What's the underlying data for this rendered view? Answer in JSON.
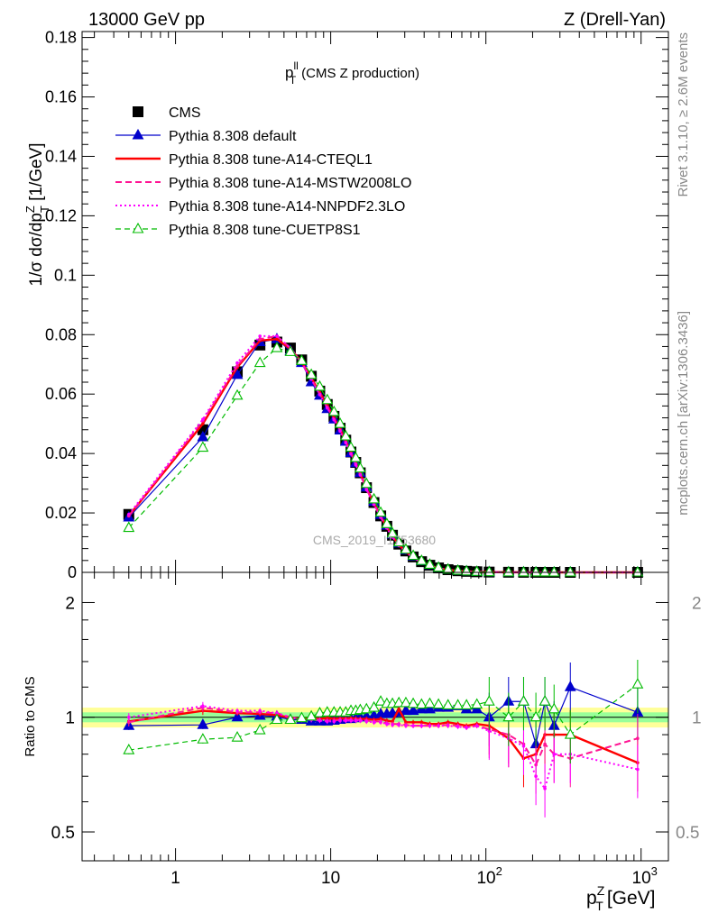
{
  "header": {
    "left": "13000 GeV pp",
    "right": "Z (Drell-Yan)"
  },
  "side_labels": {
    "rivet": "Rivet 3.1.10, ≥ 2.6M events",
    "mcplots": "mcplots.cern.ch [arXiv:1306.3436]"
  },
  "watermark": "CMS_2019_I1753680",
  "colors": {
    "cms": "#000000",
    "default": "#0000cc",
    "cteql1": "#ff0000",
    "mstw": "#ff1493",
    "nnpdf": "#ff00ff",
    "cuetp": "#00bb00",
    "band_yellow": "#ffff99",
    "band_green": "#99ff99"
  },
  "chart_data": [
    {
      "type": "line",
      "panel": "main",
      "title": "p_T^ll (CMS Z production)",
      "title_parts": {
        "main": "p",
        "sup": "ll",
        "sub": "T",
        "rest": "(CMS Z production)"
      },
      "xlabel": "p_T^Z [GeV]",
      "ylabel": "1/σ dσ/dp_T^Z [1/GeV]",
      "xscale": "log",
      "xlim": [
        0.25,
        1500
      ],
      "ylim": [
        0,
        0.182
      ],
      "ytick_labels": [
        "0",
        "0.02",
        "0.04",
        "0.06",
        "0.08",
        "0.1",
        "0.12",
        "0.14",
        "0.16",
        "0.18"
      ],
      "legend_position": "top-left",
      "legend": [
        "CMS",
        "Pythia 8.308 default",
        "Pythia 8.308 tune-A14-CTEQL1",
        "Pythia 8.308 tune-A14-MSTW2008LO",
        "Pythia 8.308 tune-A14-NNPDF2.3LO",
        "Pythia 8.308 tune-CUETP8S1"
      ],
      "x": [
        0.5,
        1.5,
        2.5,
        3.5,
        4.5,
        5.5,
        6.5,
        7.5,
        8.5,
        9.5,
        10.5,
        11.5,
        12.5,
        13.5,
        14.5,
        15.5,
        17,
        19,
        21,
        23,
        25,
        27.5,
        30.5,
        34,
        38.5,
        43.5,
        49.5,
        57,
        66,
        75,
        87.5,
        105,
        140,
        175,
        210,
        240,
        275,
        350,
        950
      ],
      "series": [
        {
          "name": "CMS",
          "values": [
            0.0195,
            0.048,
            0.0675,
            0.0765,
            0.0775,
            0.0755,
            0.0715,
            0.066,
            0.061,
            0.0565,
            0.0525,
            0.0485,
            0.0445,
            0.0405,
            0.037,
            0.0335,
            0.0285,
            0.0235,
            0.019,
            0.0155,
            0.0125,
            0.0095,
            0.0072,
            0.0052,
            0.0036,
            0.0024,
            0.0015,
            0.0009,
            0.00055,
            0.00035,
            0.0002,
            0.0001,
            4e-05,
            2e-05,
            1e-05,
            6e-06,
            3e-06,
            1.5e-06,
            1e-07
          ]
        },
        {
          "name": "Pythia 8.308 default",
          "values": [
            0.0185,
            0.0455,
            0.0665,
            0.0775,
            0.0785,
            0.0745,
            0.0705,
            0.064,
            0.0595,
            0.055,
            0.0515,
            0.0478,
            0.044,
            0.0402,
            0.0368,
            0.0335,
            0.0286,
            0.0238,
            0.0194,
            0.0158,
            0.0128,
            0.0098,
            0.0075,
            0.0054,
            0.0038,
            0.0025,
            0.0016,
            0.00095,
            0.00058,
            0.00036,
            0.0002,
            0.0001,
            4e-05,
            2e-05,
            1e-05,
            6e-06,
            3e-06,
            1.5e-06,
            1e-07
          ]
        },
        {
          "name": "Pythia 8.308 tune-A14-CTEQL1",
          "values": [
            0.019,
            0.05,
            0.069,
            0.078,
            0.0785,
            0.0752,
            0.0708,
            0.0655,
            0.0605,
            0.0562,
            0.052,
            0.0482,
            0.0442,
            0.0403,
            0.0367,
            0.0332,
            0.0282,
            0.0232,
            0.0188,
            0.0152,
            0.0122,
            0.0092,
            0.007,
            0.005,
            0.0035,
            0.0023,
            0.0014,
            0.00087,
            0.00053,
            0.00033,
            0.00019,
            9e-05,
            3.5e-05,
            1.5e-05,
            8e-06,
            5e-06,
            2.5e-06,
            1e-06,
            1e-07
          ]
        },
        {
          "name": "Pythia 8.308 tune-A14-MSTW2008LO",
          "values": [
            0.019,
            0.051,
            0.0695,
            0.0785,
            0.0795,
            0.0755,
            0.0705,
            0.065,
            0.06,
            0.0555,
            0.0515,
            0.0478,
            0.0438,
            0.04,
            0.0365,
            0.033,
            0.028,
            0.023,
            0.0186,
            0.015,
            0.012,
            0.0091,
            0.0069,
            0.0049,
            0.0034,
            0.0023,
            0.0014,
            0.00086,
            0.00052,
            0.00032,
            0.00018,
            9e-05,
            3.5e-05,
            1.5e-05,
            8e-06,
            5e-06,
            2.5e-06,
            1e-06,
            1e-07
          ]
        },
        {
          "name": "Pythia 8.308 tune-A14-NNPDF2.3LO",
          "values": [
            0.0195,
            0.0515,
            0.0705,
            0.0795,
            0.0795,
            0.0755,
            0.0705,
            0.065,
            0.0598,
            0.0553,
            0.0513,
            0.0475,
            0.0436,
            0.0398,
            0.0362,
            0.0328,
            0.0278,
            0.0228,
            0.0185,
            0.0149,
            0.0119,
            0.009,
            0.0068,
            0.0049,
            0.0034,
            0.0023,
            0.0014,
            0.00085,
            0.00052,
            0.00032,
            0.00018,
            9e-05,
            3.5e-05,
            1.5e-05,
            8e-06,
            5e-06,
            2.5e-06,
            1e-06,
            1e-07
          ]
        },
        {
          "name": "Pythia 8.308 tune-CUETP8S1",
          "values": [
            0.015,
            0.042,
            0.0595,
            0.0705,
            0.0755,
            0.0742,
            0.0712,
            0.0665,
            0.0625,
            0.058,
            0.054,
            0.05,
            0.0458,
            0.042,
            0.0385,
            0.035,
            0.0298,
            0.0246,
            0.0201,
            0.0163,
            0.0131,
            0.0101,
            0.0077,
            0.0056,
            0.0039,
            0.0026,
            0.0016,
            0.00097,
            0.00059,
            0.00037,
            0.00021,
            0.0001,
            4e-05,
            2e-05,
            1e-05,
            6e-06,
            3e-06,
            1.5e-06,
            1e-07
          ]
        }
      ]
    },
    {
      "type": "line",
      "panel": "ratio",
      "ylabel": "Ratio to CMS",
      "xlabel": "p_T^Z [GeV]",
      "xlabel_parts": {
        "main": "p",
        "sup": "Z",
        "sub": "T",
        "rest": "[GeV]"
      },
      "xscale": "log",
      "yscale": "log",
      "xlim": [
        0.25,
        1500
      ],
      "ylim": [
        0.42,
        2.4
      ],
      "ytick_labels": [
        "0.5",
        "1",
        "2"
      ],
      "xtick_labels": [
        "1",
        "10",
        "10^2",
        "10^3"
      ],
      "band_yellow": [
        0.94,
        1.06
      ],
      "band_green": [
        0.97,
        1.03
      ],
      "x": [
        0.5,
        1.5,
        2.5,
        3.5,
        4.5,
        5.5,
        6.5,
        7.5,
        8.5,
        9.5,
        10.5,
        11.5,
        12.5,
        13.5,
        14.5,
        15.5,
        17,
        19,
        21,
        23,
        25,
        27.5,
        30.5,
        34,
        38.5,
        43.5,
        49.5,
        57,
        66,
        75,
        87.5,
        105,
        140,
        175,
        210,
        240,
        275,
        350,
        950
      ],
      "series": [
        {
          "name": "Pythia 8.308 default",
          "values": [
            0.95,
            0.955,
            1.0,
            1.01,
            1.005,
            0.985,
            0.985,
            0.975,
            0.975,
            0.975,
            0.98,
            0.985,
            0.99,
            0.99,
            0.995,
            1.0,
            1.005,
            1.01,
            1.02,
            1.02,
            1.025,
            1.03,
            1.04,
            1.04,
            1.05,
            1.05,
            1.06,
            1.06,
            1.07,
            1.05,
            1.05,
            1.0,
            1.1,
            1.1,
            0.85,
            1.1,
            0.95,
            1.2,
            1.03
          ]
        },
        {
          "name": "Pythia 8.308 tune-A14-CTEQL1",
          "values": [
            0.975,
            1.04,
            1.025,
            1.02,
            1.013,
            0.997,
            0.99,
            0.992,
            0.99,
            0.995,
            0.99,
            0.993,
            0.993,
            0.995,
            0.992,
            0.99,
            0.99,
            0.985,
            0.99,
            0.98,
            0.975,
            1.05,
            0.97,
            0.97,
            0.97,
            0.96,
            0.96,
            0.97,
            0.96,
            0.95,
            0.96,
            0.95,
            0.88,
            0.78,
            0.8,
            0.9,
            0.9,
            0.9,
            0.76
          ]
        },
        {
          "name": "Pythia 8.308 tune-A14-MSTW2008LO",
          "values": [
            0.97,
            1.06,
            1.03,
            1.03,
            1.025,
            1.0,
            0.985,
            0.985,
            0.985,
            0.98,
            0.98,
            0.985,
            0.985,
            0.985,
            0.985,
            0.985,
            0.98,
            0.975,
            0.975,
            0.965,
            0.96,
            0.96,
            0.955,
            0.95,
            0.95,
            0.95,
            0.95,
            0.955,
            0.95,
            0.94,
            0.95,
            0.93,
            0.9,
            0.85,
            0.75,
            0.85,
            0.8,
            0.78,
            0.88
          ]
        },
        {
          "name": "Pythia 8.308 tune-A14-NNPDF2.3LO",
          "values": [
            1.0,
            1.07,
            1.04,
            1.04,
            1.025,
            1.0,
            0.985,
            0.985,
            0.98,
            0.975,
            0.975,
            0.98,
            0.98,
            0.98,
            0.98,
            0.98,
            0.975,
            0.97,
            0.97,
            0.96,
            0.955,
            0.955,
            0.95,
            0.95,
            0.95,
            0.95,
            0.95,
            0.95,
            0.945,
            0.94,
            0.95,
            0.92,
            0.88,
            0.84,
            0.7,
            0.65,
            0.8,
            0.8,
            0.73
          ]
        },
        {
          "name": "Pythia 8.308 tune-CUETP8S1",
          "values": [
            0.82,
            0.875,
            0.885,
            0.925,
            0.985,
            0.985,
            0.995,
            1.005,
            1.025,
            1.03,
            1.03,
            1.03,
            1.03,
            1.04,
            1.04,
            1.045,
            1.05,
            1.06,
            1.1,
            1.085,
            1.085,
            1.09,
            1.09,
            1.085,
            1.08,
            1.085,
            1.08,
            1.075,
            1.075,
            1.075,
            1.08,
            1.1,
            1.0,
            1.1,
            1.0,
            1.1,
            1.05,
            0.9,
            1.22
          ]
        }
      ]
    }
  ]
}
